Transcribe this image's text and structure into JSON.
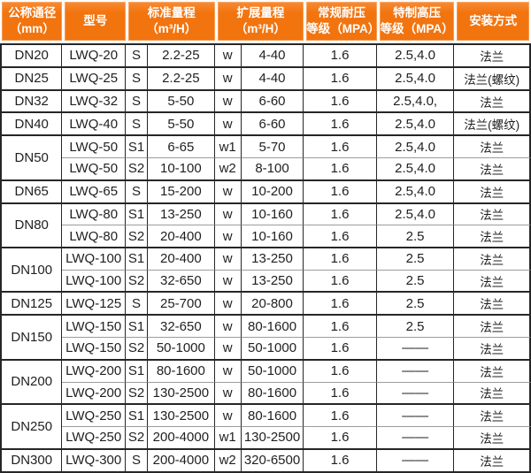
{
  "colors": {
    "header_bg": "#f2740f",
    "header_text": "#ffffff",
    "body_text": "#1f1f1f",
    "border_dark": "#262626",
    "border_light": "#9c9c9c"
  },
  "table": {
    "headers": [
      "公称通径\n（mm）",
      "型号",
      "标准量程\n（m³/H）",
      "扩展量程\n（m³/H）",
      "常规耐压\n等级（MPA）",
      "特制高压\n等级（MPA）",
      "安装方式"
    ],
    "groups": [
      {
        "dn": "DN20",
        "rows": [
          [
            "LWQ-20",
            "S",
            "2.2-25",
            "w",
            "4-40",
            "1.6",
            "2.5,4.0",
            "法兰"
          ]
        ]
      },
      {
        "dn": "DN25",
        "rows": [
          [
            "LWQ-25",
            "S",
            "2.2-25",
            "w",
            "4-40",
            "1.6",
            "2.5,4.0",
            "法兰(螺纹)"
          ]
        ]
      },
      {
        "dn": "DN32",
        "rows": [
          [
            "LWQ-32",
            "S",
            "5-50",
            "w",
            "6-60",
            "1.6",
            "2.5,4.0,",
            "法兰"
          ]
        ]
      },
      {
        "dn": "DN40",
        "rows": [
          [
            "LWQ-40",
            "S",
            "5-50",
            "w",
            "6-60",
            "1.6",
            "2.5,4.0",
            "法兰(螺纹)"
          ]
        ]
      },
      {
        "dn": "DN50",
        "rows": [
          [
            "LWQ-50",
            "S1",
            "6-65",
            "w1",
            "5-70",
            "1.6",
            "2.5,4.0",
            "法兰"
          ],
          [
            "LWQ-50",
            "S2",
            "10-100",
            "w2",
            "8-100",
            "1.6",
            "2.5,4.0",
            "法兰"
          ]
        ]
      },
      {
        "dn": "DN65",
        "rows": [
          [
            "LWQ-65",
            "S",
            "15-200",
            "w",
            "10-200",
            "1.6",
            "2.5,4.0",
            "法兰"
          ]
        ]
      },
      {
        "dn": "DN80",
        "rows": [
          [
            "LWQ-80",
            "S1",
            "13-250",
            "w",
            "10-160",
            "1.6",
            "2.5,4.0",
            "法兰"
          ],
          [
            "LWQ-80",
            "S2",
            "20-400",
            "w",
            "10-160",
            "1.6",
            "2.5",
            "法兰"
          ]
        ]
      },
      {
        "dn": "DN100",
        "rows": [
          [
            "LWQ-100",
            "S1",
            "20-400",
            "w",
            "13-250",
            "1.6",
            "2.5",
            "法兰"
          ],
          [
            "LWQ-100",
            "S2",
            "32-650",
            "w",
            "13-250",
            "1.6",
            "2.5",
            "法兰"
          ]
        ]
      },
      {
        "dn": "DN125",
        "rows": [
          [
            "LWQ-125",
            "S",
            "25-700",
            "w",
            "20-800",
            "1.6",
            "2.5",
            "法兰"
          ]
        ]
      },
      {
        "dn": "DN150",
        "rows": [
          [
            "LWQ-150",
            "S1",
            "32-650",
            "w",
            "80-1600",
            "1.6",
            "2.5",
            "法兰"
          ],
          [
            "LWQ-150",
            "S2",
            "50-1000",
            "w",
            "50-1000",
            "1.6",
            "——",
            "法兰"
          ]
        ]
      },
      {
        "dn": "DN200",
        "rows": [
          [
            "LWQ-200",
            "S1",
            "80-1600",
            "w",
            "50-1000",
            "1.6",
            "——",
            "法兰"
          ],
          [
            "LWQ-200",
            "S2",
            "130-2500",
            "w",
            "80-1600",
            "1.6",
            "——",
            "法兰"
          ]
        ]
      },
      {
        "dn": "DN250",
        "rows": [
          [
            "LWQ-250",
            "S1",
            "130-2500",
            "w",
            "80-1600",
            "1.6",
            "——",
            "法兰"
          ],
          [
            "LWQ-250",
            "S2",
            "200-4000",
            "w1",
            "130-2500",
            "1.6",
            "——",
            "法兰"
          ]
        ]
      },
      {
        "dn": "DN300",
        "rows": [
          [
            "LWQ-300",
            "S",
            "200-4000",
            "w2",
            "320-6500",
            "1.6",
            "——",
            "法兰"
          ]
        ]
      }
    ]
  }
}
